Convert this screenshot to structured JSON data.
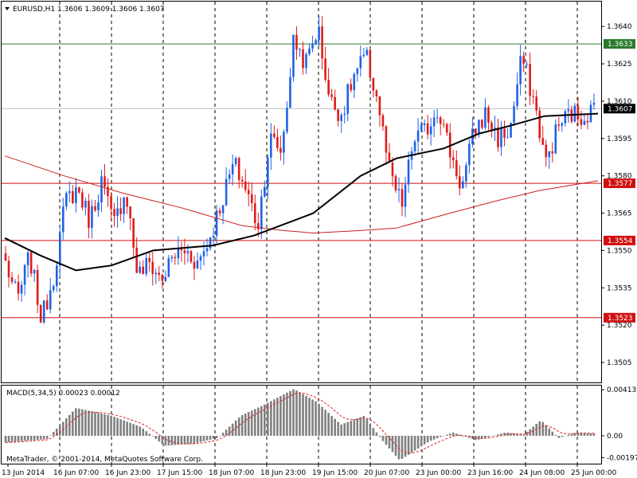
{
  "header": {
    "symbol_line": "EURUSD,H1  1.3606 1.3609 1.3606 1.3607",
    "macd_line": "MACD(5,34,5) 0.00023 0.00012",
    "copyright": "MetaTrader, © 2001-2014, MetaQuotes Software Corp."
  },
  "colors": {
    "bull": "#1e62e6",
    "bear": "#e01b1b",
    "ma_fast": "#000000",
    "ma_slow": "#c8201e",
    "level_red": "#d01010",
    "level_green": "#2a7a2a",
    "histogram": "#808080",
    "signal": "#e02020"
  },
  "chart_data": [
    {
      "type": "candlestick",
      "title": "EURUSD,H1",
      "quote": {
        "open": 1.3606,
        "high": 1.3609,
        "low": 1.3606,
        "close": 1.3607
      },
      "ylim": [
        1.3497,
        1.365
      ],
      "y_ticks": [
        "1.3640",
        "1.3625",
        "1.3610",
        "1.3595",
        "1.3580",
        "1.3565",
        "1.3550",
        "1.3535",
        "1.3520",
        "1.3505"
      ],
      "x_ticks": [
        "13 Jun 2014",
        "16 Jun 07:00",
        "16 Jun 23:00",
        "17 Jun 15:00",
        "18 Jun 07:00",
        "18 Jun 23:00",
        "19 Jun 15:00",
        "20 Jun 07:00",
        "23 Jun 00:00",
        "23 Jun 16:00",
        "24 Jun 08:00",
        "25 Jun 00:00"
      ],
      "levels": [
        {
          "label": "1.3633",
          "value": 1.3633,
          "color": "green"
        },
        {
          "label": "1.3577",
          "value": 1.3577,
          "color": "red"
        },
        {
          "label": "1.3554",
          "value": 1.3554,
          "color": "red"
        },
        {
          "label": "1.3523",
          "value": 1.3523,
          "color": "red"
        }
      ],
      "current_price": {
        "label": "1.3607",
        "value": 1.3607
      },
      "waypoints": [
        1.3545,
        1.353,
        1.3548,
        1.3522,
        1.354,
        1.357,
        1.3575,
        1.3562,
        1.3578,
        1.356,
        1.3575,
        1.354,
        1.3545,
        1.3538,
        1.3548,
        1.355,
        1.3545,
        1.3555,
        1.357,
        1.3585,
        1.3575,
        1.356,
        1.3595,
        1.359,
        1.3635,
        1.3625,
        1.364,
        1.361,
        1.3605,
        1.362,
        1.3628,
        1.361,
        1.358,
        1.3568,
        1.3595,
        1.3598,
        1.3608,
        1.359,
        1.3575,
        1.3598,
        1.3605,
        1.3595,
        1.3598,
        1.3628,
        1.361,
        1.3585,
        1.36,
        1.3605,
        1.3604,
        1.3607
      ],
      "ma_fast": [
        [
          0,
          1.3555
        ],
        [
          0.06,
          1.3548
        ],
        [
          0.12,
          1.3542
        ],
        [
          0.18,
          1.3544
        ],
        [
          0.25,
          1.355
        ],
        [
          0.35,
          1.3552
        ],
        [
          0.42,
          1.3556
        ],
        [
          0.52,
          1.3565
        ],
        [
          0.6,
          1.358
        ],
        [
          0.66,
          1.3587
        ],
        [
          0.74,
          1.3591
        ],
        [
          0.8,
          1.3597
        ],
        [
          0.85,
          1.36
        ],
        [
          0.91,
          1.3604
        ],
        [
          1.0,
          1.3605
        ]
      ],
      "ma_slow": [
        [
          0,
          1.3588
        ],
        [
          0.1,
          1.358
        ],
        [
          0.2,
          1.3573
        ],
        [
          0.3,
          1.3567
        ],
        [
          0.4,
          1.356
        ],
        [
          0.47,
          1.3558
        ],
        [
          0.52,
          1.3557
        ],
        [
          0.6,
          1.3558
        ],
        [
          0.66,
          1.3559
        ],
        [
          0.75,
          1.3565
        ],
        [
          0.83,
          1.357
        ],
        [
          0.9,
          1.3574
        ],
        [
          1.0,
          1.3578
        ]
      ]
    },
    {
      "type": "bar",
      "title": "MACD(5,34,5)",
      "values_label": "0.00023 0.00012",
      "y_ticks": [
        "0.00413",
        "0.00",
        "-0.00197"
      ],
      "ylim": [
        -0.0025,
        0.0045
      ],
      "macd_points": [
        [
          0,
          -0.0006
        ],
        [
          0.07,
          -0.0003
        ],
        [
          0.12,
          0.0025
        ],
        [
          0.18,
          0.0018
        ],
        [
          0.23,
          0.0008
        ],
        [
          0.27,
          -0.0009
        ],
        [
          0.32,
          -0.0007
        ],
        [
          0.36,
          -0.0002
        ],
        [
          0.4,
          0.0018
        ],
        [
          0.44,
          0.0028
        ],
        [
          0.49,
          0.0042
        ],
        [
          0.53,
          0.003
        ],
        [
          0.57,
          0.001
        ],
        [
          0.61,
          0.0018
        ],
        [
          0.64,
          -0.0004
        ],
        [
          0.67,
          -0.0022
        ],
        [
          0.72,
          -0.0005
        ],
        [
          0.76,
          0.0003
        ],
        [
          0.8,
          -0.0004
        ],
        [
          0.85,
          0.0003
        ],
        [
          0.88,
          0.0001
        ],
        [
          0.91,
          0.0014
        ],
        [
          0.94,
          -0.0002
        ],
        [
          0.97,
          0.0003
        ],
        [
          1.0,
          0.0002
        ]
      ]
    }
  ]
}
